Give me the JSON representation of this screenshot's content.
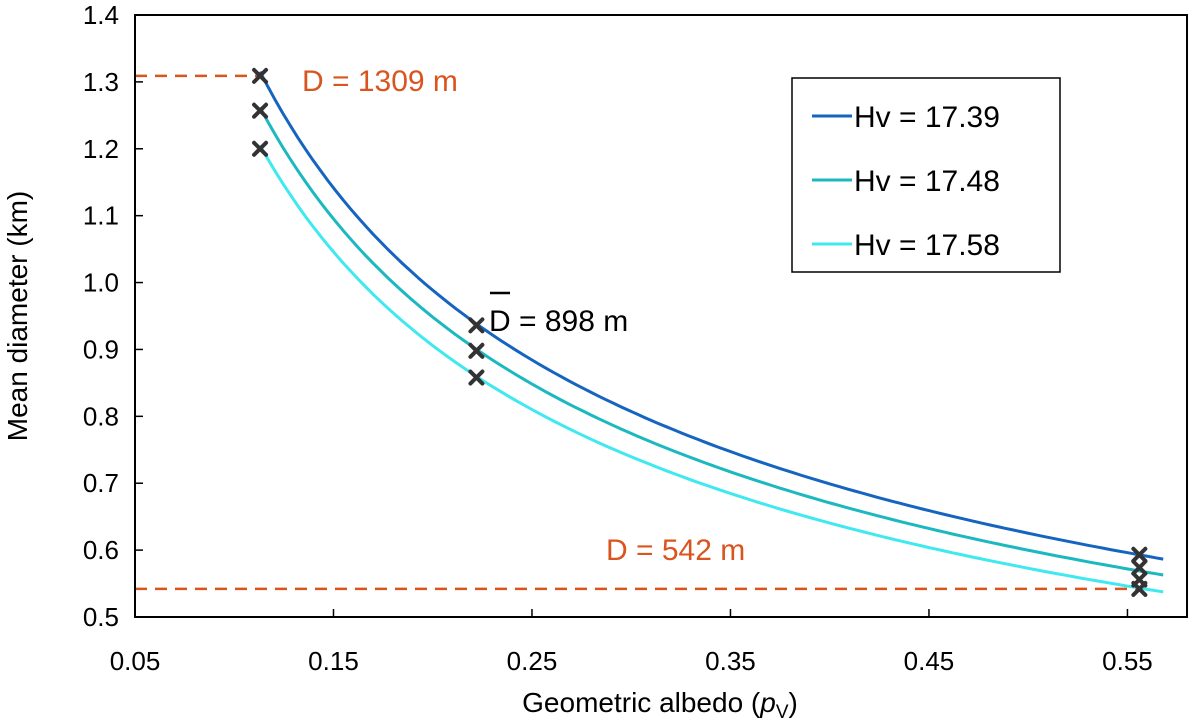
{
  "chart_data": {
    "type": "line",
    "xlabel_main": "Geometric albedo (",
    "xlabel_var": "p",
    "xlabel_sub": "V",
    "xlabel_end": ")",
    "ylabel": "Mean diameter (km)",
    "xlim": [
      0.05,
      0.58
    ],
    "ylim": [
      0.5,
      1.4
    ],
    "xticks": [
      0.05,
      0.15,
      0.25,
      0.35,
      0.45,
      0.55
    ],
    "xtick_labels": [
      "0.05",
      "0.15",
      "0.25",
      "0.35",
      "0.45",
      "0.55"
    ],
    "yticks": [
      0.5,
      0.6,
      0.7,
      0.8,
      0.9,
      1.0,
      1.1,
      1.2,
      1.3,
      1.4
    ],
    "ytick_labels": [
      "0.5",
      "0.6",
      "0.7",
      "0.8",
      "0.9",
      "1.0",
      "1.1",
      "1.2",
      "1.3",
      "1.4"
    ],
    "p_range": [
      0.113,
      0.568
    ],
    "series": [
      {
        "name": "Hv = 17.39",
        "H": 17.39,
        "color": "#1565c0"
      },
      {
        "name": "Hv = 17.48",
        "H": 17.48,
        "color": "#1cb8c0"
      },
      {
        "name": "Hv = 17.58",
        "H": 17.58,
        "color": "#40e8f0"
      }
    ],
    "markers": [
      {
        "x": 0.113,
        "y": 1.309
      },
      {
        "x": 0.113,
        "y": 1.257
      },
      {
        "x": 0.113,
        "y": 1.2
      },
      {
        "x": 0.222,
        "y": 0.936
      },
      {
        "x": 0.222,
        "y": 0.898
      },
      {
        "x": 0.222,
        "y": 0.858
      },
      {
        "x": 0.556,
        "y": 0.593
      },
      {
        "x": 0.556,
        "y": 0.574
      },
      {
        "x": 0.556,
        "y": 0.556
      },
      {
        "x": 0.556,
        "y": 0.542
      }
    ],
    "reference_lines": [
      {
        "y": 1.309,
        "x_end": 0.113,
        "color": "#d9541e"
      },
      {
        "y": 0.542,
        "x_end": 0.556,
        "color": "#d9541e"
      }
    ],
    "annotations": {
      "max_label": "D = 1309 m",
      "min_label": "D = 542 m",
      "mean_symbol": "D",
      "mean_label": " = 898 m",
      "orange": "#d9541e"
    },
    "legend_position": "top-right"
  }
}
